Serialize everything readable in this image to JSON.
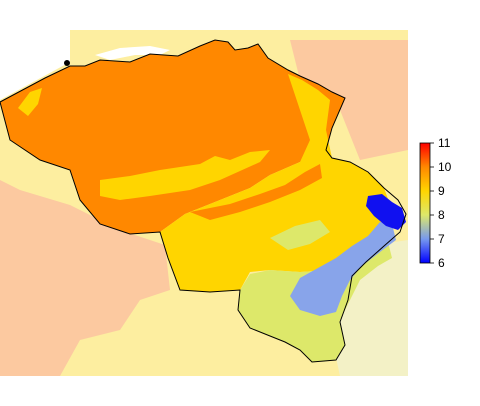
{
  "map": {
    "background_colors": {
      "outside_light": "#fdeea0",
      "outside_peach": "#fcc9a0",
      "outside_pale": "#f8f2c0",
      "sea": "#ffffff"
    }
  },
  "legend": {
    "ticks": [
      "11",
      "10",
      "9",
      "8",
      "7",
      "6"
    ],
    "min": 6,
    "max": 11,
    "colors": [
      "#0000ff",
      "#7799ee",
      "#dde86a",
      "#ffd500",
      "#ff8800",
      "#ff0000"
    ]
  },
  "zones": [
    {
      "id": "north-orange",
      "color": "#ff8800"
    },
    {
      "id": "central-yellow",
      "color": "#ffd500"
    },
    {
      "id": "south-yellowgreen",
      "color": "#dde86a"
    },
    {
      "id": "ardennes-blue",
      "color": "#88a4ea"
    },
    {
      "id": "high-fens-deepblue",
      "color": "#1010f0"
    }
  ]
}
